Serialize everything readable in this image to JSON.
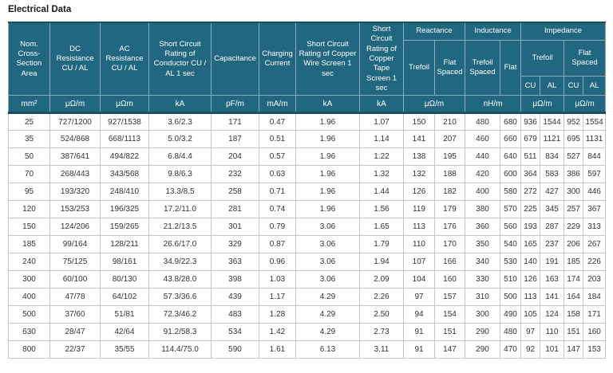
{
  "title": "Electrical Data",
  "colors": {
    "header_bg": "#216780",
    "header_text": "#ffffff",
    "header_border": "#8fa9b6",
    "header_divider": "#1a4d61",
    "body_border": "#c6c6c6",
    "body_text": "#333333",
    "title_text": "#1a1a1a"
  },
  "chart_data": {
    "type": "table",
    "title": "Electrical Data",
    "header": {
      "main": [
        "Nom. Cross-Section Area",
        "DC Resistance CU / AL",
        "AC Resistance CU / AL",
        "Short Circuit Rating of Conductor CU / AL 1 sec",
        "Capacitance",
        "Charging Current",
        "Short Circuit Rating of Copper Wire Screen 1 sec",
        "Short Circuit Rating of Copper Tape Screen 1 sec"
      ],
      "groups": {
        "reactance": {
          "label": "Reactance",
          "trefoil": "Trefoil",
          "flat_spaced": "Flat Spaced"
        },
        "inductance": {
          "label": "Inductance",
          "trefoil_spaced": "Trefoil Spaced",
          "flat": "Flat"
        },
        "impedance": {
          "label": "Impedance",
          "trefoil": "Trefoil",
          "flat_spaced": "Flat Spaced",
          "cu": "CU",
          "al": "AL"
        }
      },
      "units": {
        "area": "mm²",
        "dc_resistance": "μΩ/m",
        "ac_resistance": "μΩm",
        "sc_conductor": "kA",
        "capacitance": "pF/m",
        "charging_current": "mA/m",
        "sc_copper_wire": "kA",
        "sc_copper_tape": "kA",
        "reactance": "μΩ/m",
        "inductance": "nH/m",
        "impedance_trefoil": "μΩ/m",
        "impedance_flat_spaced": "μΩ/m"
      }
    },
    "rows": [
      [
        "25",
        "727/1200",
        "927/1538",
        "3.6/2.3",
        "171",
        "0.47",
        "1.96",
        "1.07",
        "150",
        "210",
        "480",
        "680",
        "936",
        "1544",
        "952",
        "1554"
      ],
      [
        "35",
        "524/868",
        "668/1113",
        "5.0/3.2",
        "187",
        "0.51",
        "1.96",
        "1.14",
        "141",
        "207",
        "460",
        "660",
        "679",
        "1121",
        "695",
        "1131"
      ],
      [
        "50",
        "387/641",
        "494/822",
        "6.8/4.4",
        "204",
        "0.57",
        "1.96",
        "1.22",
        "138",
        "195",
        "440",
        "640",
        "511",
        "834",
        "527",
        "844"
      ],
      [
        "70",
        "268/443",
        "343/568",
        "9.8/6.3",
        "232",
        "0.63",
        "1.96",
        "1.32",
        "132",
        "188",
        "420",
        "600",
        "364",
        "583",
        "386",
        "597"
      ],
      [
        "95",
        "193/320",
        "248/410",
        "13.3/8.5",
        "258",
        "0.71",
        "1.96",
        "1.44",
        "126",
        "182",
        "400",
        "580",
        "272",
        "427",
        "300",
        "446"
      ],
      [
        "120",
        "153/253",
        "196/325",
        "17.2/11.0",
        "281",
        "0.74",
        "1.96",
        "1.56",
        "119",
        "179",
        "380",
        "570",
        "225",
        "345",
        "257",
        "367"
      ],
      [
        "150",
        "124/206",
        "159/265",
        "21.2/13.5",
        "301",
        "0.79",
        "3.06",
        "1.65",
        "113",
        "176",
        "360",
        "560",
        "193",
        "287",
        "229",
        "313"
      ],
      [
        "185",
        "99/164",
        "128/211",
        "26.6/17.0",
        "329",
        "0.87",
        "3.06",
        "1.79",
        "110",
        "170",
        "350",
        "540",
        "165",
        "237",
        "206",
        "267"
      ],
      [
        "240",
        "75/125",
        "98/161",
        "34.9/22.3",
        "363",
        "0.96",
        "3.06",
        "1.94",
        "107",
        "166",
        "340",
        "530",
        "140",
        "191",
        "185",
        "226"
      ],
      [
        "300",
        "60/100",
        "80/130",
        "43.8/28.0",
        "398",
        "1.03",
        "3.06",
        "2.09",
        "104",
        "160",
        "330",
        "510",
        "126",
        "163",
        "174",
        "203"
      ],
      [
        "400",
        "47/78",
        "64/102",
        "57.3/36.6",
        "439",
        "1.17",
        "4.29",
        "2.26",
        "97",
        "157",
        "310",
        "500",
        "113",
        "141",
        "164",
        "184"
      ],
      [
        "500",
        "37/60",
        "51/81",
        "72.3/46.2",
        "483",
        "1.28",
        "4.29",
        "2.50",
        "94",
        "154",
        "300",
        "490",
        "105",
        "124",
        "158",
        "171"
      ],
      [
        "630",
        "28/47",
        "42/64",
        "91.2/58.3",
        "534",
        "1.42",
        "4.29",
        "2.73",
        "91",
        "151",
        "290",
        "480",
        "97",
        "110",
        "151",
        "160"
      ],
      [
        "800",
        "22/37",
        "35/55",
        "114.4/75.0",
        "590",
        "1.61",
        "6.13",
        "3.11",
        "91",
        "147",
        "290",
        "470",
        "92",
        "101",
        "147",
        "153"
      ]
    ]
  }
}
